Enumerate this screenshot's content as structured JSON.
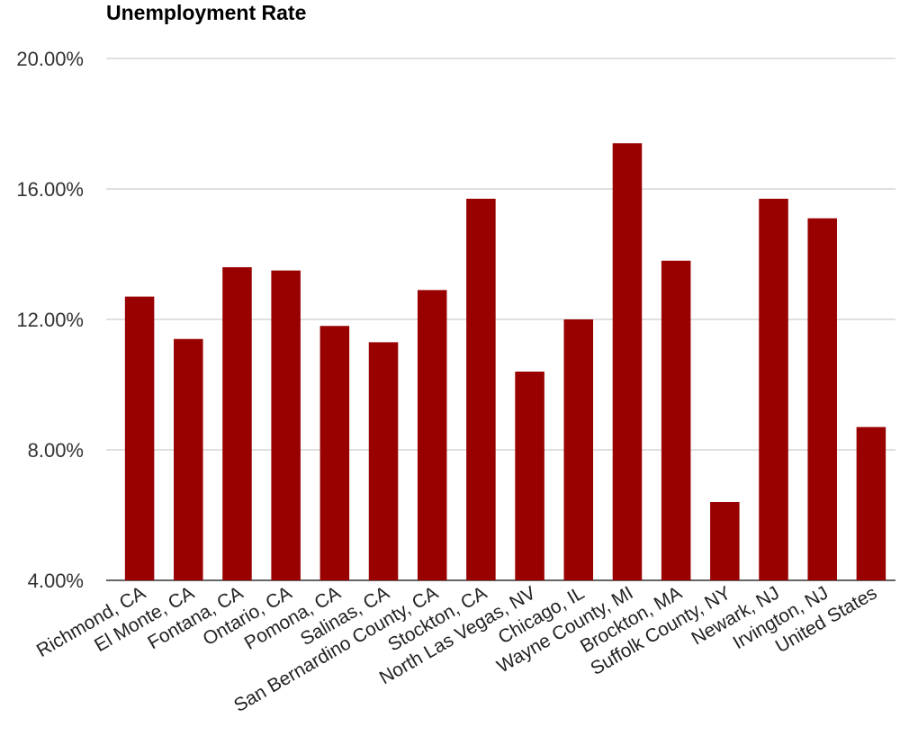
{
  "chart_data": {
    "type": "bar",
    "title": "Unemployment Rate",
    "categories": [
      "Richmond, CA",
      "El Monte, CA",
      "Fontana, CA",
      "Ontario, CA",
      "Pomona, CA",
      "Salinas, CA",
      "San Bernardino County, CA",
      "Stockton, CA",
      "North Las Vegas, NV",
      "Chicago, IL",
      "Wayne County, MI",
      "Brockton, MA",
      "Suffolk County, NY",
      "Newark, NJ",
      "Irvington, NJ",
      "United States"
    ],
    "values": [
      12.7,
      11.4,
      13.6,
      13.5,
      11.8,
      11.3,
      12.9,
      15.7,
      10.4,
      12.0,
      17.4,
      13.8,
      6.4,
      15.7,
      15.1,
      8.7
    ],
    "ylim": [
      4,
      20
    ],
    "yticks": [
      "4.00%",
      "8.00%",
      "12.00%",
      "16.00%",
      "20.00%"
    ],
    "grid": true,
    "bar_color": "#990000"
  }
}
